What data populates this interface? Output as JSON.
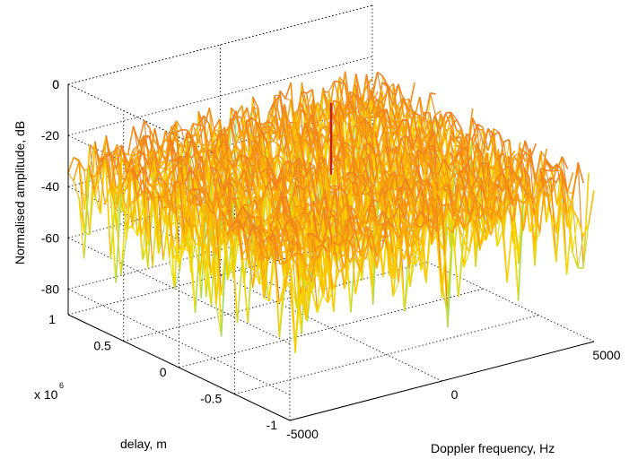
{
  "chart_data": {
    "type": "surface",
    "title": "",
    "xlabel": "Doppler frequency, Hz",
    "ylabel": "delay, m",
    "zlabel": "Normalised amplitude, dB",
    "xlim": [
      -5000,
      5000
    ],
    "ylim": [
      -1,
      1
    ],
    "zlim": [
      -90,
      0
    ],
    "xticks": [
      "-5000",
      "0",
      "5000"
    ],
    "yticks": [
      "-1",
      "-0.5",
      "0",
      "0.5",
      "1"
    ],
    "zticks": [
      "-80",
      "-60",
      "-40",
      "-20",
      "0"
    ],
    "yscale_base": "x 10",
    "yscale_exp": "6",
    "grid": true,
    "colormap": [
      "#40e0d0",
      "#a0e060",
      "#f0e000",
      "#ffc000",
      "#f08020"
    ],
    "peak": {
      "x": 0,
      "y": 0,
      "z": 0
    },
    "noise_floor_mean_db": -30
  }
}
